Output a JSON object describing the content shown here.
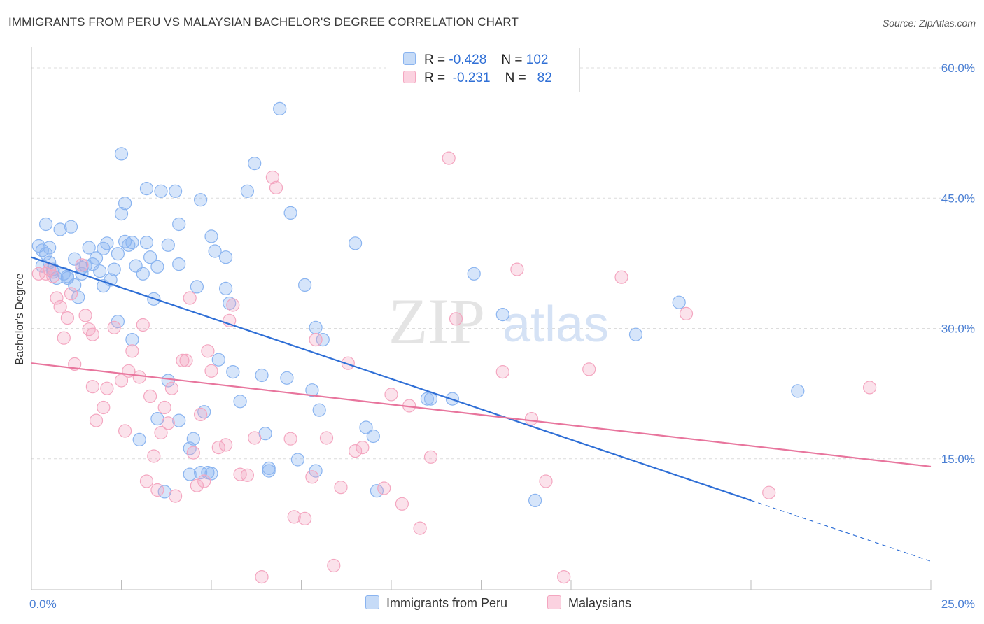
{
  "header": {
    "title": "IMMIGRANTS FROM PERU VS MALAYSIAN BACHELOR'S DEGREE CORRELATION CHART",
    "source": "Source: ZipAtlas.com"
  },
  "watermark": {
    "zip": "ZIP",
    "atlas": "atlas"
  },
  "legend": {
    "rows": [
      {
        "r_label": "R =",
        "r_value": "-0.428",
        "n_label": "N =",
        "n_value": "102",
        "color": "#8ab4f0"
      },
      {
        "r_label": "R =",
        "r_value": "-0.231",
        "n_label": "N =",
        "n_value": "82",
        "color": "#f4a6c0"
      }
    ]
  },
  "bottom_legend": [
    {
      "label": "Immigrants from Peru",
      "color": "#8ab4f0"
    },
    {
      "label": "Malaysians",
      "color": "#f4a6c0"
    }
  ],
  "chart_data": {
    "type": "scatter",
    "ylabel": "Bachelor's Degree",
    "xlim": [
      0,
      25
    ],
    "ylim": [
      0,
      60
    ],
    "x_tick_labels": [
      "0.0%",
      "25.0%"
    ],
    "y_ticks": [
      15,
      30,
      45,
      60
    ],
    "y_tick_labels": [
      "15.0%",
      "30.0%",
      "45.0%",
      "60.0%"
    ],
    "grid": "horizontal dashed",
    "legend_position": "top-center",
    "series": [
      {
        "name": "Immigrants from Peru",
        "color": "#8ab4f0",
        "trend_color": "#2f6fd6",
        "trend": {
          "x0": 0,
          "y0": 38.2,
          "x1": 20,
          "y1": 10.2,
          "dashed_to_x": 25,
          "dashed_to_y": 3.2
        },
        "points": [
          [
            0.2,
            39.5
          ],
          [
            0.3,
            39.0
          ],
          [
            0.4,
            38.6
          ],
          [
            0.5,
            39.3
          ],
          [
            0.3,
            37.2
          ],
          [
            0.6,
            36.5
          ],
          [
            0.4,
            42.0
          ],
          [
            0.8,
            41.4
          ],
          [
            1.1,
            41.7
          ],
          [
            1.0,
            35.8
          ],
          [
            1.2,
            35.0
          ],
          [
            1.3,
            33.6
          ],
          [
            1.4,
            36.3
          ],
          [
            1.5,
            37.2
          ],
          [
            1.6,
            39.3
          ],
          [
            1.8,
            38.1
          ],
          [
            1.9,
            36.6
          ],
          [
            1.7,
            37.4
          ],
          [
            2.0,
            39.2
          ],
          [
            2.1,
            39.8
          ],
          [
            2.2,
            35.6
          ],
          [
            2.3,
            36.8
          ],
          [
            2.4,
            38.6
          ],
          [
            2.6,
            40.0
          ],
          [
            2.7,
            39.6
          ],
          [
            2.8,
            39.9
          ],
          [
            1.0,
            36.0
          ],
          [
            1.2,
            38.0
          ],
          [
            0.7,
            35.8
          ],
          [
            0.9,
            36.3
          ],
          [
            0.5,
            37.6
          ],
          [
            2.4,
            30.8
          ],
          [
            2.5,
            43.2
          ],
          [
            2.5,
            50.1
          ],
          [
            2.6,
            44.4
          ],
          [
            2.8,
            28.7
          ],
          [
            2.9,
            37.2
          ],
          [
            3.1,
            36.3
          ],
          [
            3.0,
            17.2
          ],
          [
            3.2,
            46.1
          ],
          [
            3.2,
            39.9
          ],
          [
            3.3,
            38.2
          ],
          [
            3.4,
            33.4
          ],
          [
            3.5,
            37.1
          ],
          [
            3.5,
            19.6
          ],
          [
            3.6,
            45.8
          ],
          [
            3.8,
            24.0
          ],
          [
            3.8,
            39.6
          ],
          [
            4.0,
            45.8
          ],
          [
            4.1,
            42.0
          ],
          [
            4.1,
            37.4
          ],
          [
            4.1,
            19.4
          ],
          [
            4.4,
            16.2
          ],
          [
            4.5,
            17.3
          ],
          [
            4.6,
            34.8
          ],
          [
            4.7,
            44.8
          ],
          [
            4.7,
            13.4
          ],
          [
            4.8,
            20.4
          ],
          [
            4.9,
            13.4
          ],
          [
            5.0,
            13.3
          ],
          [
            5.0,
            40.6
          ],
          [
            5.1,
            38.9
          ],
          [
            5.2,
            26.4
          ],
          [
            5.4,
            38.2
          ],
          [
            5.4,
            34.6
          ],
          [
            5.5,
            32.9
          ],
          [
            5.6,
            25.0
          ],
          [
            5.8,
            21.6
          ],
          [
            6.0,
            45.8
          ],
          [
            6.2,
            49.0
          ],
          [
            6.4,
            24.6
          ],
          [
            6.5,
            17.9
          ],
          [
            6.6,
            13.6
          ],
          [
            6.9,
            55.3
          ],
          [
            7.1,
            24.3
          ],
          [
            7.2,
            43.3
          ],
          [
            7.4,
            14.9
          ],
          [
            7.6,
            35.0
          ],
          [
            7.8,
            22.9
          ],
          [
            7.9,
            30.1
          ],
          [
            7.9,
            13.6
          ],
          [
            8.0,
            20.6
          ],
          [
            8.1,
            28.7
          ],
          [
            9.0,
            39.8
          ],
          [
            9.3,
            18.6
          ],
          [
            9.5,
            17.6
          ],
          [
            9.6,
            11.3
          ],
          [
            11.0,
            21.9
          ],
          [
            11.1,
            21.9
          ],
          [
            11.7,
            21.9
          ],
          [
            12.3,
            36.3
          ],
          [
            13.1,
            31.6
          ],
          [
            14.0,
            10.2
          ],
          [
            16.8,
            29.3
          ],
          [
            18.0,
            33.0
          ],
          [
            21.3,
            22.8
          ],
          [
            3.7,
            11.2
          ],
          [
            4.4,
            13.2
          ],
          [
            2.0,
            34.9
          ],
          [
            1.4,
            37.0
          ],
          [
            0.6,
            36.8
          ],
          [
            6.6,
            13.9
          ]
        ]
      },
      {
        "name": "Malaysians",
        "color": "#f4a6c0",
        "trend_color": "#e8759d",
        "trend": {
          "x0": 0,
          "y0": 26.0,
          "x1": 25,
          "y1": 14.1
        },
        "points": [
          [
            0.2,
            36.3
          ],
          [
            0.4,
            36.3
          ],
          [
            0.5,
            36.8
          ],
          [
            0.6,
            36.0
          ],
          [
            0.7,
            33.5
          ],
          [
            0.8,
            32.5
          ],
          [
            0.9,
            28.9
          ],
          [
            1.0,
            31.2
          ],
          [
            1.1,
            34.0
          ],
          [
            1.2,
            25.9
          ],
          [
            1.4,
            37.3
          ],
          [
            1.5,
            31.5
          ],
          [
            1.6,
            29.9
          ],
          [
            1.7,
            29.3
          ],
          [
            1.7,
            23.3
          ],
          [
            1.8,
            19.4
          ],
          [
            2.0,
            20.9
          ],
          [
            2.1,
            23.1
          ],
          [
            2.3,
            30.1
          ],
          [
            2.5,
            24.0
          ],
          [
            2.6,
            18.2
          ],
          [
            2.7,
            25.1
          ],
          [
            2.8,
            27.4
          ],
          [
            3.0,
            24.4
          ],
          [
            3.1,
            30.4
          ],
          [
            3.2,
            12.4
          ],
          [
            3.3,
            22.2
          ],
          [
            3.4,
            15.3
          ],
          [
            3.5,
            11.4
          ],
          [
            3.6,
            18.0
          ],
          [
            3.7,
            20.9
          ],
          [
            3.8,
            19.1
          ],
          [
            3.9,
            23.1
          ],
          [
            4.0,
            10.7
          ],
          [
            4.2,
            26.3
          ],
          [
            4.3,
            26.3
          ],
          [
            4.4,
            33.5
          ],
          [
            4.5,
            15.7
          ],
          [
            4.6,
            11.9
          ],
          [
            4.7,
            20.1
          ],
          [
            4.8,
            12.4
          ],
          [
            4.9,
            27.4
          ],
          [
            5.0,
            25.1
          ],
          [
            5.2,
            16.3
          ],
          [
            5.4,
            16.6
          ],
          [
            5.5,
            30.9
          ],
          [
            5.6,
            32.7
          ],
          [
            5.8,
            13.2
          ],
          [
            6.0,
            13.1
          ],
          [
            6.2,
            17.4
          ],
          [
            6.4,
            1.4
          ],
          [
            6.7,
            47.4
          ],
          [
            6.8,
            46.2
          ],
          [
            7.2,
            17.3
          ],
          [
            7.3,
            8.3
          ],
          [
            7.6,
            8.1
          ],
          [
            7.8,
            12.9
          ],
          [
            7.9,
            28.7
          ],
          [
            8.2,
            17.4
          ],
          [
            8.4,
            2.7
          ],
          [
            8.6,
            11.7
          ],
          [
            8.8,
            26.0
          ],
          [
            9.0,
            15.9
          ],
          [
            9.2,
            16.3
          ],
          [
            9.8,
            11.6
          ],
          [
            10.0,
            22.4
          ],
          [
            10.3,
            9.8
          ],
          [
            10.5,
            21.1
          ],
          [
            10.8,
            7.0
          ],
          [
            11.1,
            15.2
          ],
          [
            11.6,
            49.6
          ],
          [
            11.8,
            31.1
          ],
          [
            13.1,
            25.0
          ],
          [
            13.5,
            36.8
          ],
          [
            13.9,
            19.6
          ],
          [
            14.3,
            12.4
          ],
          [
            14.8,
            1.4
          ],
          [
            15.5,
            25.3
          ],
          [
            16.4,
            35.9
          ],
          [
            18.2,
            31.7
          ],
          [
            20.5,
            11.1
          ],
          [
            23.3,
            23.2
          ]
        ]
      }
    ]
  }
}
